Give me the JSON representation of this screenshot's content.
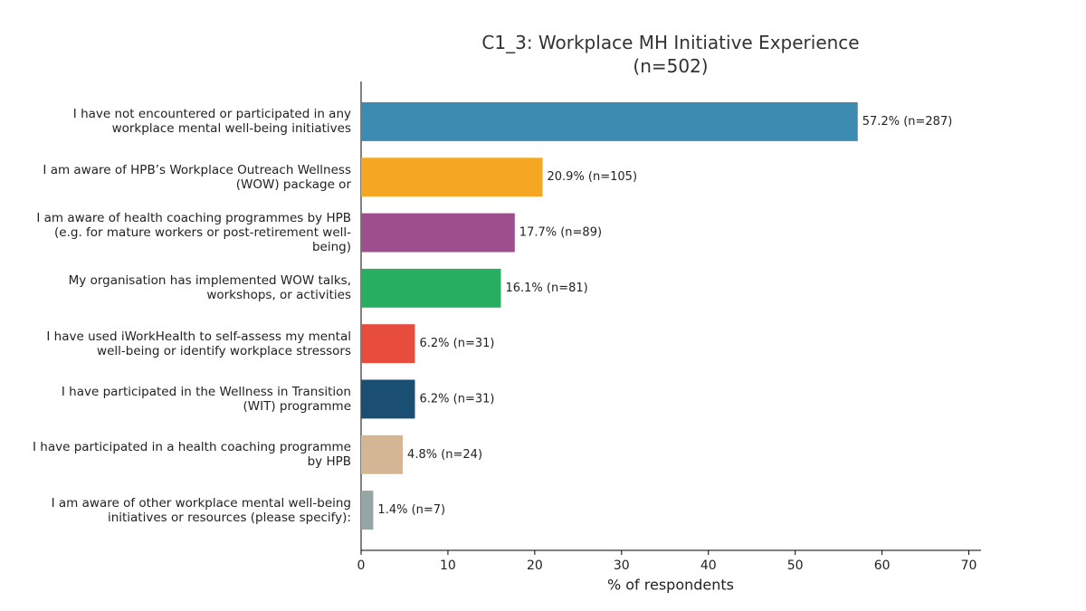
{
  "chart_data": {
    "type": "barh",
    "title": "C1_3: Workplace MH Initiative Experience\n(n=502)",
    "xlabel": "% of respondents",
    "categories": [
      "I have not encountered or participated in any\nworkplace mental well-being initiatives",
      "I am aware of HPB’s Workplace Outreach Wellness\n(WOW) package or",
      "I am aware of health coaching programmes by HPB\n(e.g. for mature workers or post-retirement well-\nbeing)",
      "My organisation has implemented WOW talks,\nworkshops, or activities",
      "I have used iWorkHealth to self-assess my mental\nwell-being or identify workplace stressors",
      "I have participated in the Wellness in Transition\n(WIT) programme",
      "I have participated in a health coaching programme\nby HPB",
      "I am aware of other workplace mental well-being\ninitiatives or resources (please specify):"
    ],
    "values": [
      57.2,
      20.9,
      17.7,
      16.1,
      6.2,
      6.2,
      4.8,
      1.4
    ],
    "value_labels": [
      "57.2% (n=287)",
      "20.9% (n=105)",
      "17.7% (n=89)",
      "16.1% (n=81)",
      "6.2% (n=31)",
      "6.2% (n=31)",
      "4.8% (n=24)",
      "1.4% (n=7)"
    ],
    "colors": [
      "#3d8bb0",
      "#f5a623",
      "#9c4f8c",
      "#27ae60",
      "#e74c3c",
      "#1a4e72",
      "#d4b594",
      "#95a5a6"
    ],
    "xlim": [
      0,
      71.4
    ],
    "xticks": [
      0,
      10,
      20,
      30,
      40,
      50,
      60,
      70
    ],
    "grid": false
  }
}
